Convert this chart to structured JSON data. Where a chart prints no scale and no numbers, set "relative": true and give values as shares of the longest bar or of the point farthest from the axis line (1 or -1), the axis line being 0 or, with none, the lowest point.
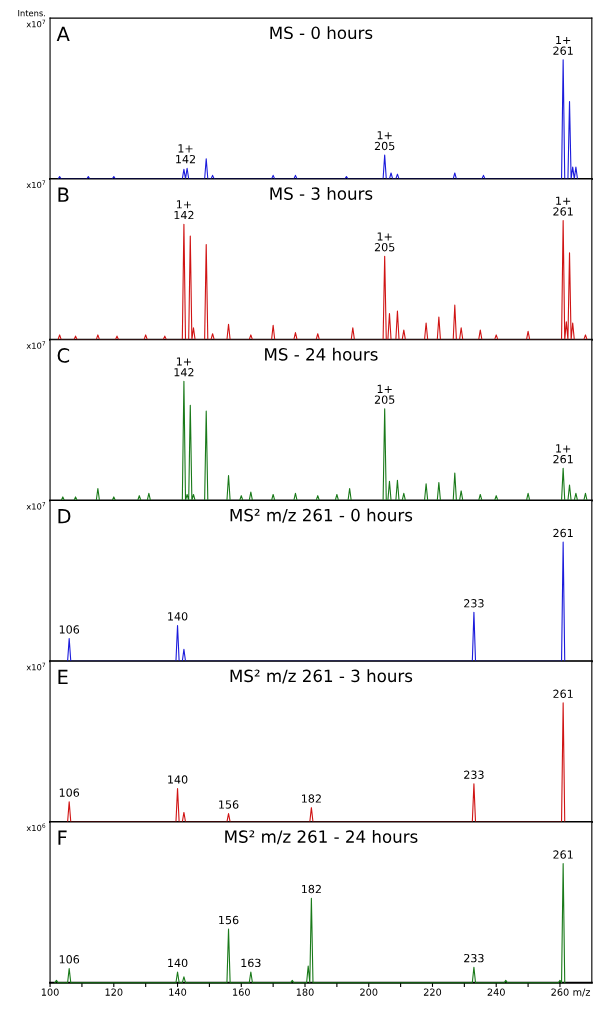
{
  "chart_data": [
    {
      "type": "line",
      "title": "MS - 0 hours",
      "relative": true,
      "xlim": [
        100,
        270
      ],
      "tick_labels": false,
      "annotations": [
        "A",
        "Intens.",
        "x10$^{7}$",
        {
          "text": "1+\n142",
          "x": 142.5,
          "y": 0.09
        },
        {
          "text": "1+\n205",
          "x": 205,
          "y": 0.2
        },
        {
          "text": "1+\n261",
          "x": 261,
          "y": 1
        }
      ],
      "series": [
        {
          "color": "#1c1cdc",
          "x": [
            102.5,
            103,
            103.5,
            111.5,
            112,
            112.5,
            119.5,
            120,
            120.5,
            141.5,
            142,
            142.5,
            143,
            143.5,
            148.5,
            149,
            149.5,
            150.5,
            151,
            151.5,
            169.5,
            170,
            170.5,
            176.5,
            177,
            177.5,
            192.5,
            193,
            193.5,
            204.5,
            205,
            205.5,
            206.5,
            207,
            207.5,
            208.5,
            209,
            209.5,
            226.5,
            227,
            227.5,
            235.5,
            236,
            236.5,
            260.5,
            261,
            261.5,
            262.5,
            263,
            263.5,
            264,
            264.5,
            265,
            265.5
          ],
          "values": [
            0,
            0.02,
            0,
            0,
            0.02,
            0,
            0,
            0.02,
            0,
            0,
            0.08,
            0,
            0.09,
            0,
            0,
            0.17,
            0,
            0,
            0.03,
            0,
            0,
            0.03,
            0,
            0,
            0.03,
            0,
            0,
            0.02,
            0,
            0,
            0.2,
            0,
            0,
            0.05,
            0,
            0,
            0.04,
            0,
            0,
            0.05,
            0,
            0,
            0.03,
            0,
            0,
            1,
            0,
            0,
            0.65,
            0,
            0.1,
            0,
            0.1,
            0
          ]
        }
      ]
    },
    {
      "type": "line",
      "title": "MS - 3 hours",
      "relative": true,
      "xlim": [
        100,
        270
      ],
      "tick_labels": false,
      "annotations": [
        "B",
        "x10$^{7}$",
        {
          "text": "1+\n142",
          "x": 142,
          "y": 0.97
        },
        {
          "text": "1+\n205",
          "x": 205,
          "y": 0.7
        },
        {
          "text": "1+\n261",
          "x": 261,
          "y": 1
        }
      ],
      "series": [
        {
          "color": "#d01414",
          "x": [
            102.5,
            103,
            103.5,
            107.5,
            108,
            108.5,
            114.5,
            115,
            115.5,
            120.5,
            121,
            121.5,
            129.5,
            130,
            130.5,
            135.5,
            136,
            136.5,
            141.5,
            142,
            142.5,
            143.5,
            144,
            144.5,
            145,
            145.5,
            148.5,
            149,
            149.5,
            150.5,
            151,
            151.5,
            155.5,
            156,
            156.5,
            162.5,
            163,
            163.5,
            169.5,
            170,
            170.5,
            176.5,
            177,
            177.5,
            183.5,
            184,
            184.5,
            194.5,
            195,
            195.5,
            204.5,
            205,
            205.5,
            206,
            206.5,
            207,
            208.5,
            209,
            209.5,
            210.5,
            211,
            211.5,
            217.5,
            218,
            218.5,
            221.5,
            222,
            222.5,
            226.5,
            227,
            227.5,
            228.5,
            229,
            229.5,
            234.5,
            235,
            235.5,
            239.5,
            240,
            240.5,
            249.5,
            250,
            250.5,
            260.5,
            261,
            261.5,
            262,
            262.5,
            263,
            263.5,
            264,
            264.5,
            267.5,
            268,
            268.5
          ],
          "values": [
            0,
            0.04,
            0,
            0,
            0.03,
            0,
            0,
            0.04,
            0,
            0,
            0.03,
            0,
            0,
            0.04,
            0,
            0,
            0.03,
            0,
            0,
            0.97,
            0,
            0,
            0.87,
            0,
            0.1,
            0,
            0,
            0.8,
            0,
            0,
            0.05,
            0,
            0,
            0.13,
            0,
            0,
            0.04,
            0,
            0,
            0.12,
            0,
            0,
            0.06,
            0,
            0,
            0.05,
            0,
            0,
            0.1,
            0,
            0,
            0.7,
            0,
            0,
            0.22,
            0,
            0,
            0.24,
            0,
            0,
            0.08,
            0,
            0,
            0.14,
            0,
            0,
            0.19,
            0,
            0,
            0.29,
            0,
            0,
            0.1,
            0,
            0,
            0.08,
            0,
            0,
            0.04,
            0,
            0,
            0.07,
            0,
            0,
            1,
            0,
            0.15,
            0,
            0.73,
            0,
            0.14,
            0,
            0,
            0.04,
            0
          ]
        }
      ]
    },
    {
      "type": "line",
      "title": "MS - 24 hours",
      "relative": true,
      "xlim": [
        100,
        270
      ],
      "tick_labels": false,
      "annotations": [
        "C",
        "x10$^{7}$",
        {
          "text": "1+\n142",
          "x": 142,
          "y": 1
        },
        {
          "text": "1+\n205",
          "x": 205,
          "y": 0.77
        },
        {
          "text": "1+\n261",
          "x": 261,
          "y": 0.27
        }
      ],
      "series": [
        {
          "color": "#1a7a1a",
          "x": [
            103.5,
            104,
            104.5,
            107.5,
            108,
            108.5,
            114.5,
            115,
            115.5,
            119.5,
            120,
            120.5,
            127.5,
            128,
            128.5,
            130.5,
            131,
            131.5,
            141.5,
            142,
            142.5,
            143,
            143.5,
            144,
            144.5,
            145,
            145.5,
            148.5,
            149,
            149.5,
            155.5,
            156,
            156.5,
            159.5,
            160,
            160.5,
            162.5,
            163,
            163.5,
            169.5,
            170,
            170.5,
            176.5,
            177,
            177.5,
            183.5,
            184,
            184.5,
            189.5,
            190,
            190.5,
            193.5,
            194,
            194.5,
            204.5,
            205,
            205.5,
            206,
            206.5,
            207,
            208.5,
            209,
            209.5,
            210.5,
            211,
            211.5,
            217.5,
            218,
            218.5,
            221.5,
            222,
            222.5,
            226.5,
            227,
            227.5,
            228.5,
            229,
            229.5,
            234.5,
            235,
            235.5,
            239.5,
            240,
            240.5,
            249.5,
            250,
            250.5,
            260.5,
            261,
            261.5,
            262.5,
            263,
            263.5,
            264.5,
            265,
            265.5,
            267.5,
            268,
            268.5
          ],
          "values": [
            0,
            0.03,
            0,
            0,
            0.03,
            0,
            0,
            0.1,
            0,
            0,
            0.03,
            0,
            0,
            0.04,
            0,
            0,
            0.06,
            0,
            0,
            1,
            0,
            0.05,
            0,
            0.8,
            0,
            0.05,
            0,
            0,
            0.75,
            0,
            0,
            0.21,
            0,
            0,
            0.04,
            0,
            0,
            0.07,
            0,
            0,
            0.05,
            0,
            0,
            0.06,
            0,
            0,
            0.04,
            0,
            0,
            0.05,
            0,
            0,
            0.1,
            0,
            0,
            0.77,
            0,
            0,
            0.16,
            0,
            0,
            0.17,
            0,
            0,
            0.06,
            0,
            0,
            0.14,
            0,
            0,
            0.15,
            0,
            0,
            0.23,
            0,
            0,
            0.08,
            0,
            0,
            0.05,
            0,
            0,
            0.04,
            0,
            0,
            0.06,
            0,
            0,
            0.27,
            0,
            0,
            0.13,
            0,
            0,
            0.06,
            0,
            0,
            0.06,
            0
          ]
        }
      ]
    },
    {
      "type": "line",
      "title": "MS² m/z 261 - 0 hours",
      "relative": true,
      "xlim": [
        100,
        270
      ],
      "tick_labels": false,
      "annotations": [
        "D",
        "x10$^{7}$",
        {
          "text": "106",
          "x": 106,
          "y": 0.19
        },
        {
          "text": "140",
          "x": 140,
          "y": 0.3
        },
        {
          "text": "233",
          "x": 233,
          "y": 0.41
        },
        {
          "text": "261",
          "x": 261,
          "y": 1
        }
      ],
      "series": [
        {
          "color": "#1c1cdc",
          "x": [
            105.5,
            106,
            106.5,
            139.5,
            140,
            140.5,
            141.5,
            142,
            142.5,
            232.5,
            233,
            233.5,
            260.5,
            261,
            261.5
          ],
          "values": [
            0,
            0.19,
            0,
            0,
            0.3,
            0,
            0,
            0.1,
            0,
            0,
            0.41,
            0,
            0,
            1,
            0
          ]
        }
      ]
    },
    {
      "type": "line",
      "title": "MS² m/z 261 - 3 hours",
      "relative": true,
      "xlim": [
        100,
        270
      ],
      "tick_labels": false,
      "annotations": [
        "E",
        "x10$^{7}$",
        {
          "text": "106",
          "x": 106,
          "y": 0.17
        },
        {
          "text": "140",
          "x": 140,
          "y": 0.28
        },
        {
          "text": "156",
          "x": 156,
          "y": 0.07
        },
        {
          "text": "182",
          "x": 182,
          "y": 0.12
        },
        {
          "text": "233",
          "x": 233,
          "y": 0.32
        },
        {
          "text": "261",
          "x": 261,
          "y": 1
        }
      ],
      "series": [
        {
          "color": "#d01414",
          "x": [
            105.5,
            106,
            106.5,
            139.5,
            140,
            140.5,
            141.5,
            142,
            142.5,
            155.5,
            156,
            156.5,
            181.5,
            182,
            182.5,
            232.5,
            233,
            233.5,
            260.5,
            261,
            261.5
          ],
          "values": [
            0,
            0.17,
            0,
            0,
            0.28,
            0,
            0,
            0.08,
            0,
            0,
            0.07,
            0,
            0,
            0.12,
            0,
            0,
            0.32,
            0,
            0,
            1,
            0
          ]
        }
      ]
    },
    {
      "type": "line",
      "title": "MS² m/z 261 - 24 hours",
      "relative": true,
      "xlim": [
        100,
        270
      ],
      "tick_labels": "x",
      "xlabel": "m/z",
      "xticks": [
        100,
        {
          "value": 110,
          "label": null
        },
        120,
        {
          "value": 130,
          "label": null
        },
        140,
        {
          "value": 150,
          "label": null
        },
        160,
        {
          "value": 170,
          "label": null
        },
        180,
        {
          "value": 190,
          "label": null
        },
        200,
        {
          "value": 210,
          "label": null
        },
        220,
        {
          "value": 230,
          "label": null
        },
        240,
        {
          "value": 250,
          "label": null
        },
        260
      ],
      "annotations": [
        "F",
        "x10$^{6}$",
        {
          "text": "106",
          "x": 106,
          "y": 0.12
        },
        {
          "text": "140",
          "x": 140,
          "y": 0.09
        },
        {
          "text": "156",
          "x": 156,
          "y": 0.45
        },
        {
          "text": "163",
          "x": 163,
          "y": 0.09
        },
        {
          "text": "182",
          "x": 182,
          "y": 0.71
        },
        {
          "text": "233",
          "x": 233,
          "y": 0.13
        },
        {
          "text": "261",
          "x": 261,
          "y": 1
        }
      ],
      "series": [
        {
          "color": "#1a7a1a",
          "x": [
            101.5,
            102,
            102.5,
            105.5,
            106,
            106.5,
            139.5,
            140,
            140.5,
            141.5,
            142,
            142.5,
            155.5,
            156,
            156.5,
            162.5,
            163,
            163.5,
            175.5,
            176,
            176.5,
            180.5,
            181,
            181.5,
            182,
            182.5,
            232.5,
            233,
            233.5,
            242.5,
            243,
            243.5,
            259.5,
            260,
            260.5,
            261,
            261.5
          ],
          "values": [
            0,
            0.02,
            0,
            0,
            0.12,
            0,
            0,
            0.09,
            0,
            0,
            0.05,
            0,
            0,
            0.45,
            0,
            0,
            0.09,
            0,
            0,
            0.02,
            0,
            0,
            0.14,
            0,
            0.71,
            0,
            0,
            0.13,
            0,
            0,
            0.02,
            0,
            0,
            0.02,
            0,
            1,
            0
          ]
        }
      ]
    }
  ]
}
